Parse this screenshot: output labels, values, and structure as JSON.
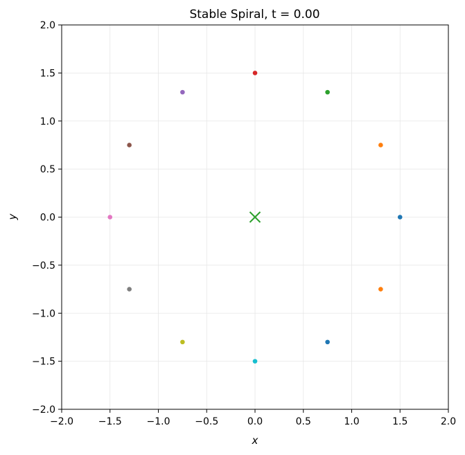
{
  "chart_data": {
    "type": "scatter",
    "title": "Stable Spiral, t = 0.00",
    "xlabel": "x",
    "ylabel": "y",
    "xlim": [
      -2.0,
      2.0
    ],
    "ylim": [
      -2.0,
      2.0
    ],
    "xticks": [
      -2.0,
      -1.5,
      -1.0,
      -0.5,
      0.0,
      0.5,
      1.0,
      1.5,
      2.0
    ],
    "yticks": [
      -2.0,
      -1.5,
      -1.0,
      -0.5,
      0.0,
      0.5,
      1.0,
      1.5,
      2.0
    ],
    "xtick_labels": [
      "−2.0",
      "−1.5",
      "−1.0",
      "−0.5",
      "0.0",
      "0.5",
      "1.0",
      "1.5",
      "2.0"
    ],
    "ytick_labels": [
      "−2.0",
      "−1.5",
      "−1.0",
      "−0.5",
      "0.0",
      "0.5",
      "1.0",
      "1.5",
      "2.0"
    ],
    "grid": true,
    "points": [
      {
        "x": 1.5,
        "y": 0.0,
        "color": "#1f77b4"
      },
      {
        "x": 1.3,
        "y": 0.75,
        "color": "#ff7f0e"
      },
      {
        "x": 0.75,
        "y": 1.3,
        "color": "#2ca02c"
      },
      {
        "x": 0.0,
        "y": 1.5,
        "color": "#d62728"
      },
      {
        "x": -0.75,
        "y": 1.3,
        "color": "#9467bd"
      },
      {
        "x": -1.3,
        "y": 0.75,
        "color": "#8c564b"
      },
      {
        "x": -1.5,
        "y": 0.0,
        "color": "#e377c2"
      },
      {
        "x": -1.3,
        "y": -0.75,
        "color": "#7f7f7f"
      },
      {
        "x": -0.75,
        "y": -1.3,
        "color": "#bcbd22"
      },
      {
        "x": 0.0,
        "y": -1.5,
        "color": "#17becf"
      },
      {
        "x": 0.75,
        "y": -1.3,
        "color": "#1f77b4"
      },
      {
        "x": 1.3,
        "y": -0.75,
        "color": "#ff7f0e"
      }
    ],
    "equilibrium": {
      "x": 0.0,
      "y": 0.0,
      "marker": "x",
      "color": "#2ca02c"
    }
  }
}
